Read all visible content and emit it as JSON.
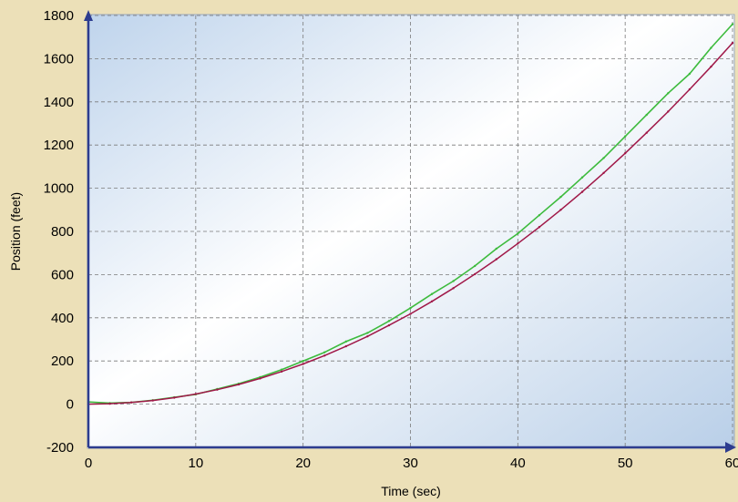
{
  "chart_data": {
    "type": "line",
    "title": "",
    "xlabel": "Time (sec)",
    "ylabel": "Position (feet)",
    "xlim": [
      0,
      60
    ],
    "ylim": [
      -200,
      1800
    ],
    "xticks": [
      0,
      10,
      20,
      30,
      40,
      50,
      60
    ],
    "yticks": [
      -200,
      0,
      200,
      400,
      600,
      800,
      1000,
      1200,
      1400,
      1600,
      1800
    ],
    "grid": true,
    "legend": "none",
    "colors": {
      "background": "#ece0b8",
      "plot_bg_edge": "#bcd2ea",
      "plot_bg_center": "#ffffff",
      "grid": "#7a7a7a",
      "measured": "#3dbb3d",
      "fit": "#a01848",
      "axis_arrow": "#2d3c8f"
    },
    "series": [
      {
        "style": "noisy measured data",
        "x": [
          0,
          2,
          4,
          6,
          8,
          10,
          12,
          14,
          16,
          18,
          20,
          22,
          24,
          26,
          28,
          30,
          32,
          34,
          36,
          38,
          40,
          42,
          44,
          46,
          48,
          50,
          52,
          54,
          56,
          58,
          60
        ],
        "y": [
          10,
          5,
          8,
          18,
          32,
          45,
          70,
          95,
          125,
          160,
          200,
          240,
          290,
          330,
          385,
          445,
          510,
          570,
          640,
          720,
          790,
          875,
          960,
          1050,
          1140,
          1240,
          1340,
          1440,
          1530,
          1650,
          1760
        ]
      },
      {
        "style": "smooth fitted curve",
        "x": [
          0,
          2,
          4,
          6,
          8,
          10,
          12,
          14,
          16,
          18,
          20,
          22,
          24,
          26,
          28,
          30,
          32,
          34,
          36,
          38,
          40,
          42,
          44,
          46,
          48,
          50,
          52,
          54,
          56,
          58,
          60
        ],
        "y": [
          0,
          2,
          8,
          17,
          30,
          47,
          67,
          91,
          119,
          151,
          186,
          225,
          268,
          314,
          365,
          418,
          476,
          537,
          602,
          671,
          744,
          820,
          900,
          983,
          1071,
          1162,
          1257,
          1355,
          1458,
          1563,
          1673
        ]
      }
    ]
  }
}
